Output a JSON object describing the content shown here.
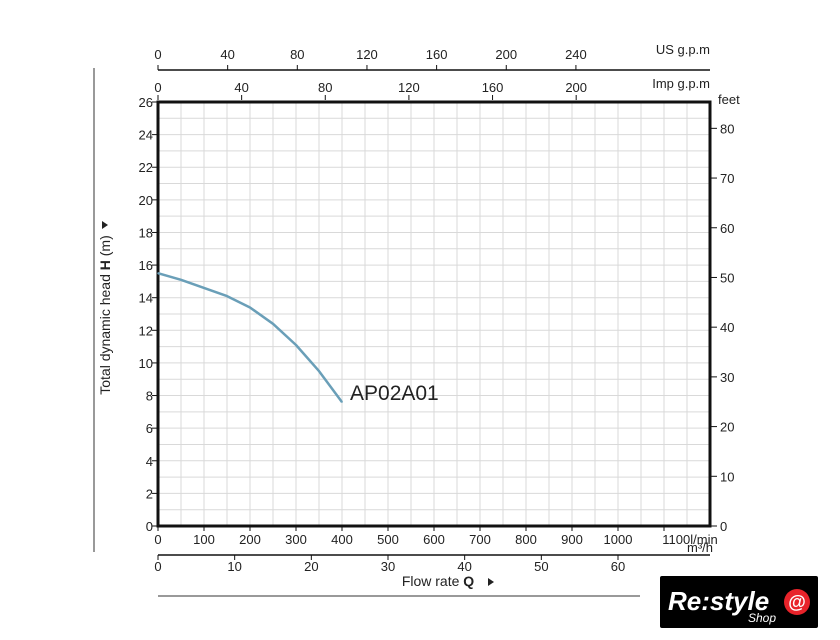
{
  "chart_data": {
    "type": "line",
    "x_axis_bottom": {
      "unit_label": "l/min",
      "ticks": [
        0,
        100,
        200,
        300,
        400,
        500,
        600,
        700,
        800,
        900,
        1000,
        1100
      ],
      "range": [
        0,
        1200
      ]
    },
    "x_axis_m3h": {
      "unit_label": "m³/h",
      "ticks": [
        0,
        10,
        20,
        30,
        40,
        50,
        60
      ],
      "range": [
        0,
        72
      ]
    },
    "x_axis_us_gpm": {
      "unit_label": "US g.p.m",
      "ticks": [
        0,
        40,
        80,
        120,
        160,
        200,
        240
      ],
      "range": [
        0,
        317
      ]
    },
    "x_axis_imp_gpm": {
      "unit_label": "Imp g.p.m",
      "ticks": [
        0,
        40,
        80,
        120,
        160,
        200
      ],
      "range": [
        0,
        264
      ]
    },
    "y_axis_left": {
      "title_prefix": "Total dynamic head ",
      "title_bold": "H",
      "title_suffix": " (m)",
      "ticks": [
        0,
        2,
        4,
        6,
        8,
        10,
        12,
        14,
        16,
        18,
        20,
        22,
        24,
        26
      ],
      "range": [
        0,
        26
      ]
    },
    "y_axis_right": {
      "unit_label": "feet",
      "ticks": [
        0,
        10,
        20,
        30,
        40,
        50,
        60,
        70,
        80
      ],
      "range": [
        0,
        85.3
      ]
    },
    "x_title_prefix": "Flow rate ",
    "x_title_bold": "Q",
    "grid": true,
    "series": [
      {
        "name": "AP02A01",
        "color": "#6a9fb8",
        "x": [
          0,
          50,
          100,
          150,
          200,
          250,
          300,
          350,
          400
        ],
        "y": [
          15.5,
          15.1,
          14.6,
          14.1,
          13.4,
          12.4,
          11.1,
          9.5,
          7.6
        ]
      }
    ]
  },
  "logo": {
    "text": "Re:style",
    "sub": "Shop",
    "accent": "#e8232a"
  }
}
